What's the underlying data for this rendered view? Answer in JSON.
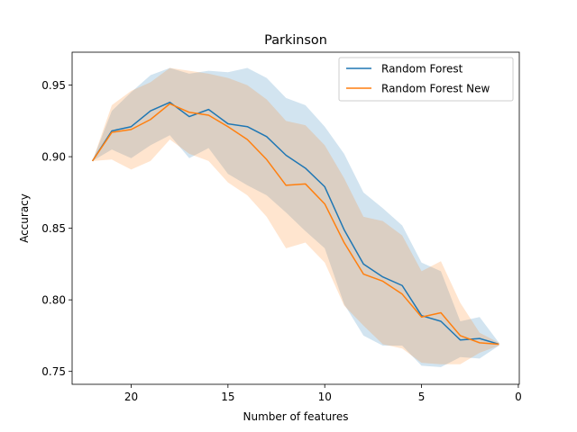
{
  "chart_data": {
    "type": "line",
    "title": "Parkinson",
    "xlabel": "Number of features",
    "ylabel": "Accuracy",
    "xlim": [
      23.05,
      -0.05
    ],
    "ylim": [
      0.741,
      0.973
    ],
    "x_ticks": [
      20,
      15,
      10,
      5,
      0
    ],
    "y_ticks": [
      0.75,
      0.8,
      0.85,
      0.9,
      0.95
    ],
    "y_tick_labels": [
      "0.75",
      "0.80",
      "0.85",
      "0.90",
      "0.95"
    ],
    "x_tick_labels": [
      "20",
      "15",
      "10",
      "5",
      "0"
    ],
    "legend_position": "top-right",
    "x": [
      22,
      21,
      20,
      19,
      18,
      17,
      16,
      15,
      14,
      13,
      12,
      11,
      10,
      9,
      8,
      7,
      6,
      5,
      4,
      3,
      2,
      1
    ],
    "series": [
      {
        "name": "Random Forest",
        "color": "#1f77b4",
        "band_color": "#1f77b4",
        "values": [
          0.897,
          0.918,
          0.921,
          0.932,
          0.938,
          0.928,
          0.933,
          0.923,
          0.921,
          0.914,
          0.901,
          0.892,
          0.879,
          0.849,
          0.825,
          0.816,
          0.81,
          0.789,
          0.785,
          0.772,
          0.773,
          0.769
        ],
        "upper": [
          0.897,
          0.932,
          0.945,
          0.957,
          0.962,
          0.958,
          0.96,
          0.959,
          0.962,
          0.955,
          0.941,
          0.936,
          0.921,
          0.902,
          0.875,
          0.864,
          0.852,
          0.826,
          0.82,
          0.785,
          0.788,
          0.77
        ],
        "lower": [
          0.897,
          0.905,
          0.899,
          0.908,
          0.915,
          0.899,
          0.906,
          0.888,
          0.88,
          0.873,
          0.861,
          0.848,
          0.836,
          0.797,
          0.775,
          0.768,
          0.768,
          0.754,
          0.753,
          0.76,
          0.759,
          0.768
        ]
      },
      {
        "name": "Random Forest New",
        "color": "#ff7f0e",
        "band_color": "#ff7f0e",
        "values": [
          0.897,
          0.917,
          0.919,
          0.926,
          0.937,
          0.931,
          0.929,
          0.921,
          0.912,
          0.898,
          0.88,
          0.881,
          0.867,
          0.84,
          0.818,
          0.813,
          0.804,
          0.788,
          0.791,
          0.775,
          0.77,
          0.769
        ],
        "upper": [
          0.897,
          0.936,
          0.946,
          0.952,
          0.962,
          0.96,
          0.958,
          0.955,
          0.95,
          0.94,
          0.925,
          0.922,
          0.908,
          0.885,
          0.858,
          0.855,
          0.845,
          0.82,
          0.827,
          0.798,
          0.777,
          0.77
        ],
        "lower": [
          0.897,
          0.898,
          0.891,
          0.897,
          0.912,
          0.902,
          0.897,
          0.882,
          0.873,
          0.858,
          0.836,
          0.84,
          0.826,
          0.796,
          0.782,
          0.769,
          0.766,
          0.756,
          0.755,
          0.755,
          0.763,
          0.768
        ]
      }
    ]
  }
}
